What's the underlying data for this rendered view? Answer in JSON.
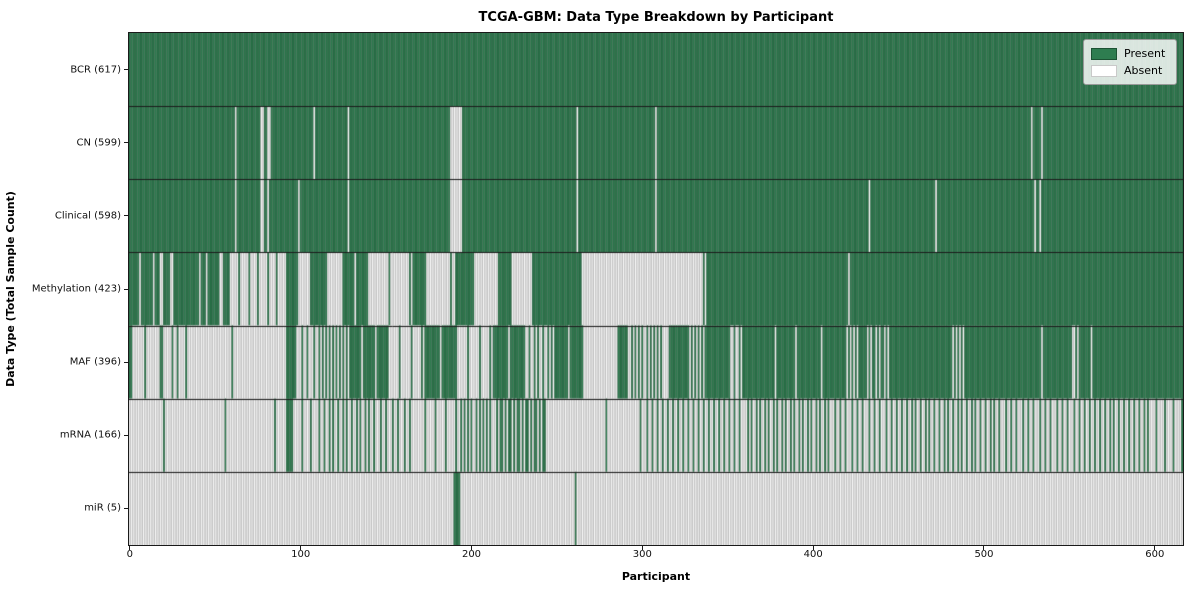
{
  "title": "TCGA-GBM: Data Type Breakdown by Participant",
  "chart_data": {
    "type": "heatmap",
    "title": "TCGA-GBM: Data Type Breakdown by Participant",
    "xlabel": "Participant",
    "ylabel": "Data Type (Total Sample Count)",
    "n_participants": 617,
    "x_ticks": [
      0,
      100,
      200,
      300,
      400,
      500,
      600
    ],
    "x_range": [
      0,
      617
    ],
    "grid": "horizontal row separators",
    "legend": {
      "position": "upper right",
      "entries": [
        {
          "label": "Present",
          "color": "#2e7d50"
        },
        {
          "label": "Absent",
          "color": "#ffffff"
        }
      ]
    },
    "colors": {
      "present": "#2e7d50",
      "present_edge": "#1c5233",
      "absent": "#ffffff",
      "absent_edge": "#9e9e9e",
      "separator": "#1a1a1a"
    },
    "run_format": "runs are [cell_count, fraction_present]; 1 = solid present (green), 0 = absent (white), fractions = interleaved present/absent striping estimated from the image",
    "rows": [
      {
        "label": "BCR (617)",
        "name": "BCR",
        "present_count": 617,
        "runs": [
          [
            617,
            1
          ]
        ]
      },
      {
        "label": "CN (599)",
        "name": "CN",
        "present_count": 599,
        "runs": [
          [
            62,
            1
          ],
          [
            1,
            0
          ],
          [
            14,
            1
          ],
          [
            2,
            0
          ],
          [
            2,
            1
          ],
          [
            2,
            0
          ],
          [
            25,
            1
          ],
          [
            1,
            0
          ],
          [
            19,
            1
          ],
          [
            1,
            0
          ],
          [
            59,
            1
          ],
          [
            7,
            0
          ],
          [
            67,
            1
          ],
          [
            1,
            0
          ],
          [
            45,
            1
          ],
          [
            1,
            0
          ],
          [
            219,
            1
          ],
          [
            1,
            0
          ],
          [
            5,
            1
          ],
          [
            1,
            0
          ],
          [
            82,
            1
          ]
        ]
      },
      {
        "label": "Clinical (598)",
        "name": "Clinical",
        "present_count": 598,
        "runs": [
          [
            62,
            1
          ],
          [
            1,
            0
          ],
          [
            14,
            1
          ],
          [
            2,
            0
          ],
          [
            2,
            1
          ],
          [
            1,
            0
          ],
          [
            17,
            1
          ],
          [
            1,
            0
          ],
          [
            28,
            1
          ],
          [
            1,
            0
          ],
          [
            59,
            1
          ],
          [
            7,
            0
          ],
          [
            67,
            1
          ],
          [
            1,
            0
          ],
          [
            45,
            1
          ],
          [
            1,
            0
          ],
          [
            124,
            1
          ],
          [
            1,
            0
          ],
          [
            38,
            1
          ],
          [
            1,
            0
          ],
          [
            57,
            1
          ],
          [
            1,
            0
          ],
          [
            2,
            1
          ],
          [
            1,
            0
          ],
          [
            83,
            1
          ]
        ]
      },
      {
        "label": "Methylation (423)",
        "name": "Methylation",
        "present_count": 423,
        "runs": [
          [
            6,
            1
          ],
          [
            1,
            0
          ],
          [
            7,
            1
          ],
          [
            1,
            0
          ],
          [
            3,
            1
          ],
          [
            2,
            0
          ],
          [
            4,
            1
          ],
          [
            2,
            0
          ],
          [
            15,
            1
          ],
          [
            1,
            0
          ],
          [
            3,
            1
          ],
          [
            1,
            0
          ],
          [
            7,
            1
          ],
          [
            2,
            0
          ],
          [
            4,
            1
          ],
          [
            34,
            0.18
          ],
          [
            6,
            1
          ],
          [
            7,
            0
          ],
          [
            10,
            1
          ],
          [
            8,
            0
          ],
          [
            16,
            0.875
          ],
          [
            26,
            0.08
          ],
          [
            8,
            1
          ],
          [
            16,
            0.07
          ],
          [
            12,
            0.92
          ],
          [
            14,
            0
          ],
          [
            8,
            1
          ],
          [
            12,
            0
          ],
          [
            29,
            1
          ],
          [
            73,
            0.014
          ],
          [
            83,
            1
          ],
          [
            1,
            0
          ],
          [
            195,
            1
          ]
        ]
      },
      {
        "label": "MAF (396)",
        "name": "MAF",
        "present_count": 396,
        "runs": [
          [
            2,
            1
          ],
          [
            7,
            0
          ],
          [
            1,
            1
          ],
          [
            8,
            0
          ],
          [
            2,
            1
          ],
          [
            5,
            0
          ],
          [
            1,
            1
          ],
          [
            2,
            0
          ],
          [
            1,
            1
          ],
          [
            4,
            0
          ],
          [
            1,
            1
          ],
          [
            26,
            0
          ],
          [
            1,
            1
          ],
          [
            31,
            0
          ],
          [
            6,
            1
          ],
          [
            14,
            0.29
          ],
          [
            16,
            0.5
          ],
          [
            24,
            0.875
          ],
          [
            20,
            0.15
          ],
          [
            20,
            0.9
          ],
          [
            20,
            0.15
          ],
          [
            20,
            0.9
          ],
          [
            16,
            0.375
          ],
          [
            18,
            0.89
          ],
          [
            20,
            0
          ],
          [
            6,
            1
          ],
          [
            20,
            0.45
          ],
          [
            4,
            0
          ],
          [
            12,
            1
          ],
          [
            11,
            0.55
          ],
          [
            13,
            1
          ],
          [
            8,
            0.375
          ],
          [
            18,
            1
          ],
          [
            1,
            0
          ],
          [
            11,
            1
          ],
          [
            1,
            0
          ],
          [
            14,
            1
          ],
          [
            1,
            0
          ],
          [
            14,
            1
          ],
          [
            8,
            0.5
          ],
          [
            4,
            1
          ],
          [
            15,
            0.6
          ],
          [
            35,
            1
          ],
          [
            7,
            0.57
          ],
          [
            45,
            1
          ],
          [
            1,
            0
          ],
          [
            17,
            1
          ],
          [
            5,
            0.4
          ],
          [
            6,
            1
          ],
          [
            1,
            0
          ],
          [
            53,
            1
          ]
        ]
      },
      {
        "label": "mRNA (166)",
        "name": "mRNA",
        "present_count": 166,
        "runs": [
          [
            20,
            0
          ],
          [
            1,
            1
          ],
          [
            35,
            0
          ],
          [
            1,
            1
          ],
          [
            28,
            0
          ],
          [
            1,
            1
          ],
          [
            6,
            0
          ],
          [
            4,
            1
          ],
          [
            16,
            0.19
          ],
          [
            32,
            0.38
          ],
          [
            24,
            0.29
          ],
          [
            24,
            0.17
          ],
          [
            22,
            0.45
          ],
          [
            30,
            0.6
          ],
          [
            16,
            0.06
          ],
          [
            40,
            0.05
          ],
          [
            60,
            0.33
          ],
          [
            50,
            0.4
          ],
          [
            40,
            0.3
          ],
          [
            60,
            0.37
          ],
          [
            47,
            0.3
          ],
          [
            40,
            0.35
          ],
          [
            20,
            0.2
          ]
        ]
      },
      {
        "label": "miR (5)",
        "name": "miR",
        "present_count": 5,
        "runs": [
          [
            190,
            0
          ],
          [
            4,
            1
          ],
          [
            67,
            0
          ],
          [
            1,
            1
          ],
          [
            355,
            0
          ]
        ]
      }
    ]
  }
}
